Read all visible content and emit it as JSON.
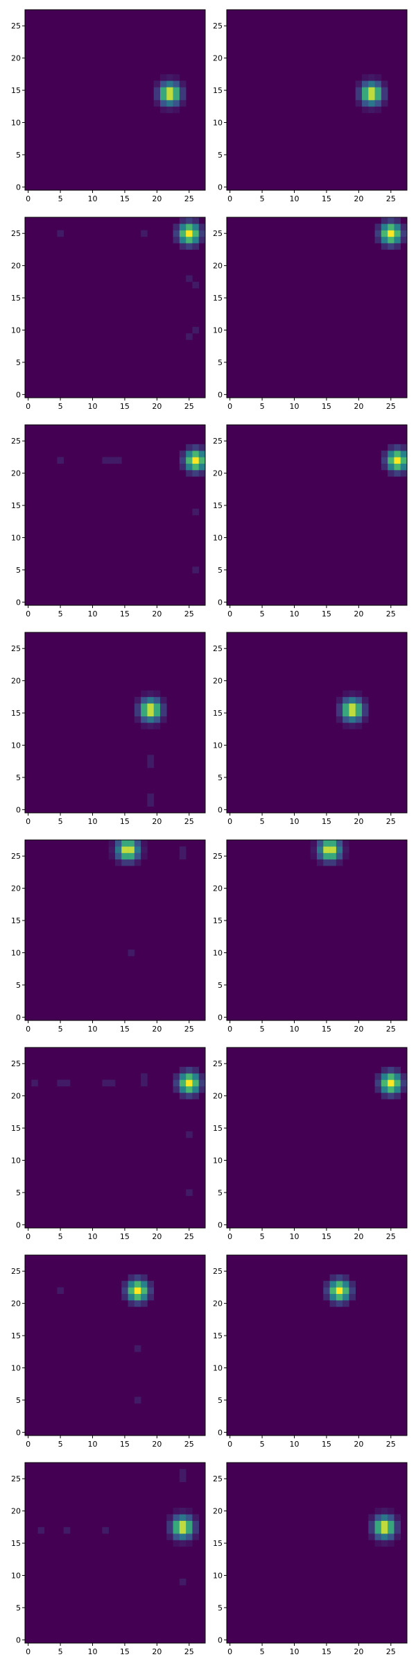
{
  "figure": {
    "rows": 8,
    "cols": 2,
    "grid_size": 28,
    "colormap": "viridis",
    "colors": {
      "background": "#440154",
      "mid": "#21918c",
      "peak": "#fde725"
    }
  },
  "chart_data": [
    {
      "type": "heatmap",
      "row": 0,
      "col": 0,
      "panel": "noisy",
      "xlim": [
        -0.5,
        27.5
      ],
      "ylim": [
        -0.5,
        27.5
      ],
      "x_ticks": [
        "0",
        "5",
        "10",
        "15",
        "20",
        "25"
      ],
      "y_ticks": [
        "0",
        "5",
        "10",
        "15",
        "20",
        "25"
      ],
      "blob_center": [
        22,
        14.5
      ],
      "noise": []
    },
    {
      "type": "heatmap",
      "row": 0,
      "col": 1,
      "panel": "clean",
      "xlim": [
        -0.5,
        27.5
      ],
      "ylim": [
        -0.5,
        27.5
      ],
      "x_ticks": [
        "0",
        "5",
        "10",
        "15",
        "20",
        "25"
      ],
      "y_ticks": [
        "0",
        "5",
        "10",
        "15",
        "20",
        "25"
      ],
      "blob_center": [
        22,
        14.5
      ],
      "noise": []
    },
    {
      "type": "heatmap",
      "row": 1,
      "col": 0,
      "panel": "noisy",
      "xlim": [
        -0.5,
        27.5
      ],
      "ylim": [
        -0.5,
        27.5
      ],
      "x_ticks": [
        "0",
        "5",
        "10",
        "15",
        "20",
        "25"
      ],
      "y_ticks": [
        "0",
        "5",
        "10",
        "15",
        "20",
        "25"
      ],
      "blob_center": [
        25,
        25
      ],
      "noise": [
        [
          5,
          25
        ],
        [
          18,
          25
        ],
        [
          25,
          18
        ],
        [
          26,
          17
        ],
        [
          26,
          10
        ],
        [
          25,
          9
        ]
      ]
    },
    {
      "type": "heatmap",
      "row": 1,
      "col": 1,
      "panel": "clean",
      "xlim": [
        -0.5,
        27.5
      ],
      "ylim": [
        -0.5,
        27.5
      ],
      "x_ticks": [
        "0",
        "5",
        "10",
        "15",
        "20",
        "25"
      ],
      "y_ticks": [
        "0",
        "5",
        "10",
        "15",
        "20",
        "25"
      ],
      "blob_center": [
        25,
        25
      ],
      "noise": []
    },
    {
      "type": "heatmap",
      "row": 2,
      "col": 0,
      "panel": "noisy",
      "xlim": [
        -0.5,
        27.5
      ],
      "ylim": [
        -0.5,
        27.5
      ],
      "x_ticks": [
        "0",
        "5",
        "10",
        "15",
        "20",
        "25"
      ],
      "y_ticks": [
        "0",
        "5",
        "10",
        "15",
        "20",
        "25"
      ],
      "blob_center": [
        26,
        22
      ],
      "noise": [
        [
          5,
          22
        ],
        [
          12,
          22
        ],
        [
          13,
          22
        ],
        [
          14,
          22
        ],
        [
          26,
          14
        ],
        [
          26,
          5
        ]
      ]
    },
    {
      "type": "heatmap",
      "row": 2,
      "col": 1,
      "panel": "clean",
      "xlim": [
        -0.5,
        27.5
      ],
      "ylim": [
        -0.5,
        27.5
      ],
      "x_ticks": [
        "0",
        "5",
        "10",
        "15",
        "20",
        "25"
      ],
      "y_ticks": [
        "0",
        "5",
        "10",
        "15",
        "20",
        "25"
      ],
      "blob_center": [
        26,
        22
      ],
      "noise": []
    },
    {
      "type": "heatmap",
      "row": 3,
      "col": 0,
      "panel": "noisy",
      "xlim": [
        -0.5,
        27.5
      ],
      "ylim": [
        -0.5,
        27.5
      ],
      "x_ticks": [
        "0",
        "5",
        "10",
        "15",
        "20",
        "25"
      ],
      "y_ticks": [
        "0",
        "5",
        "10",
        "15",
        "20",
        "25"
      ],
      "blob_center": [
        19,
        15.5
      ],
      "noise": [
        [
          19,
          8
        ],
        [
          19,
          7
        ],
        [
          19,
          2
        ],
        [
          19,
          1
        ]
      ]
    },
    {
      "type": "heatmap",
      "row": 3,
      "col": 1,
      "panel": "clean",
      "xlim": [
        -0.5,
        27.5
      ],
      "ylim": [
        -0.5,
        27.5
      ],
      "x_ticks": [
        "0",
        "5",
        "10",
        "15",
        "20",
        "25"
      ],
      "y_ticks": [
        "0",
        "5",
        "10",
        "15",
        "20",
        "25"
      ],
      "blob_center": [
        19,
        15.5
      ],
      "noise": []
    },
    {
      "type": "heatmap",
      "row": 4,
      "col": 0,
      "panel": "noisy",
      "xlim": [
        -0.5,
        27.5
      ],
      "ylim": [
        -0.5,
        27.5
      ],
      "x_ticks": [
        "0",
        "5",
        "10",
        "15",
        "20",
        "25"
      ],
      "y_ticks": [
        "0",
        "5",
        "10",
        "15",
        "20",
        "25"
      ],
      "blob_center": [
        15.5,
        26
      ],
      "noise": [
        [
          24,
          26
        ],
        [
          24,
          25
        ],
        [
          16,
          10
        ]
      ]
    },
    {
      "type": "heatmap",
      "row": 4,
      "col": 1,
      "panel": "clean",
      "xlim": [
        -0.5,
        27.5
      ],
      "ylim": [
        -0.5,
        27.5
      ],
      "x_ticks": [
        "0",
        "5",
        "10",
        "15",
        "20",
        "25"
      ],
      "y_ticks": [
        "0",
        "5",
        "10",
        "15",
        "20",
        "25"
      ],
      "blob_center": [
        15.5,
        26
      ],
      "noise": []
    },
    {
      "type": "heatmap",
      "row": 5,
      "col": 0,
      "panel": "noisy",
      "xlim": [
        -0.5,
        27.5
      ],
      "ylim": [
        -0.5,
        27.5
      ],
      "x_ticks": [
        "0",
        "5",
        "10",
        "15",
        "20",
        "25"
      ],
      "y_ticks": [
        "0",
        "5",
        "10",
        "15",
        "20",
        "25"
      ],
      "blob_center": [
        25,
        22
      ],
      "noise": [
        [
          1,
          22
        ],
        [
          5,
          22
        ],
        [
          6,
          22
        ],
        [
          12,
          22
        ],
        [
          13,
          22
        ],
        [
          18,
          22
        ],
        [
          18,
          23
        ],
        [
          25,
          14
        ],
        [
          25,
          5
        ]
      ]
    },
    {
      "type": "heatmap",
      "row": 5,
      "col": 1,
      "panel": "clean",
      "xlim": [
        -0.5,
        27.5
      ],
      "ylim": [
        -0.5,
        27.5
      ],
      "x_ticks": [
        "0",
        "5",
        "10",
        "15",
        "20",
        "25"
      ],
      "y_ticks": [
        "0",
        "5",
        "10",
        "15",
        "20",
        "25"
      ],
      "blob_center": [
        25,
        22
      ],
      "noise": []
    },
    {
      "type": "heatmap",
      "row": 6,
      "col": 0,
      "panel": "noisy",
      "xlim": [
        -0.5,
        27.5
      ],
      "ylim": [
        -0.5,
        27.5
      ],
      "x_ticks": [
        "0",
        "5",
        "10",
        "15",
        "20",
        "25"
      ],
      "y_ticks": [
        "0",
        "5",
        "10",
        "15",
        "20",
        "25"
      ],
      "blob_center": [
        17,
        22
      ],
      "noise": [
        [
          5,
          22
        ],
        [
          17,
          13
        ],
        [
          17,
          5
        ]
      ]
    },
    {
      "type": "heatmap",
      "row": 6,
      "col": 1,
      "panel": "clean",
      "xlim": [
        -0.5,
        27.5
      ],
      "ylim": [
        -0.5,
        27.5
      ],
      "x_ticks": [
        "0",
        "5",
        "10",
        "15",
        "20",
        "25"
      ],
      "y_ticks": [
        "0",
        "5",
        "10",
        "15",
        "20",
        "25"
      ],
      "blob_center": [
        17,
        22
      ],
      "noise": []
    },
    {
      "type": "heatmap",
      "row": 7,
      "col": 0,
      "panel": "noisy",
      "xlim": [
        -0.5,
        27.5
      ],
      "ylim": [
        -0.5,
        27.5
      ],
      "x_ticks": [
        "0",
        "5",
        "10",
        "15",
        "20",
        "25"
      ],
      "y_ticks": [
        "0",
        "5",
        "10",
        "15",
        "20",
        "25"
      ],
      "blob_center": [
        24,
        17.5
      ],
      "noise": [
        [
          24,
          26
        ],
        [
          24,
          25
        ],
        [
          6,
          17
        ],
        [
          12,
          17
        ],
        [
          24,
          9
        ],
        [
          2,
          17
        ]
      ]
    },
    {
      "type": "heatmap",
      "row": 7,
      "col": 1,
      "panel": "clean",
      "xlim": [
        -0.5,
        27.5
      ],
      "ylim": [
        -0.5,
        27.5
      ],
      "x_ticks": [
        "0",
        "5",
        "10",
        "15",
        "20",
        "25"
      ],
      "y_ticks": [
        "0",
        "5",
        "10",
        "15",
        "20",
        "25"
      ],
      "blob_center": [
        24,
        17.5
      ],
      "noise": []
    }
  ]
}
